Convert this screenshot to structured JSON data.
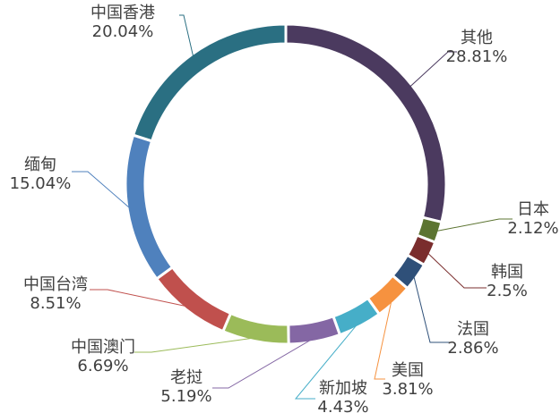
{
  "chart_data": {
    "type": "pie",
    "variant": "donut",
    "title": "",
    "legend": "none",
    "slices": [
      {
        "name": "其他",
        "value": 28.81,
        "label": "28.81%",
        "color": "#4b3a5f"
      },
      {
        "name": "日本",
        "value": 2.12,
        "label": "2.12%",
        "color": "#5c7431"
      },
      {
        "name": "韩国",
        "value": 2.5,
        "label": "2.5%",
        "color": "#7a2d2d"
      },
      {
        "name": "法国",
        "value": 2.86,
        "label": "2.86%",
        "color": "#2f5079"
      },
      {
        "name": "美国",
        "value": 3.81,
        "label": "3.81%",
        "color": "#f6923f"
      },
      {
        "name": "新加坡",
        "value": 4.43,
        "label": "4.43%",
        "color": "#46aec8"
      },
      {
        "name": "老挝",
        "value": 5.19,
        "label": "5.19%",
        "color": "#8467a4"
      },
      {
        "name": "中国澳门",
        "value": 6.69,
        "label": "6.69%",
        "color": "#9bbb59"
      },
      {
        "name": "中国台湾",
        "value": 8.51,
        "label": "8.51%",
        "color": "#c0504d"
      },
      {
        "name": "缅甸",
        "value": 15.04,
        "label": "15.04%",
        "color": "#4f81bd"
      },
      {
        "name": "中国香港",
        "value": 20.04,
        "label": "20.04%",
        "color": "#2a6f82"
      }
    ]
  }
}
